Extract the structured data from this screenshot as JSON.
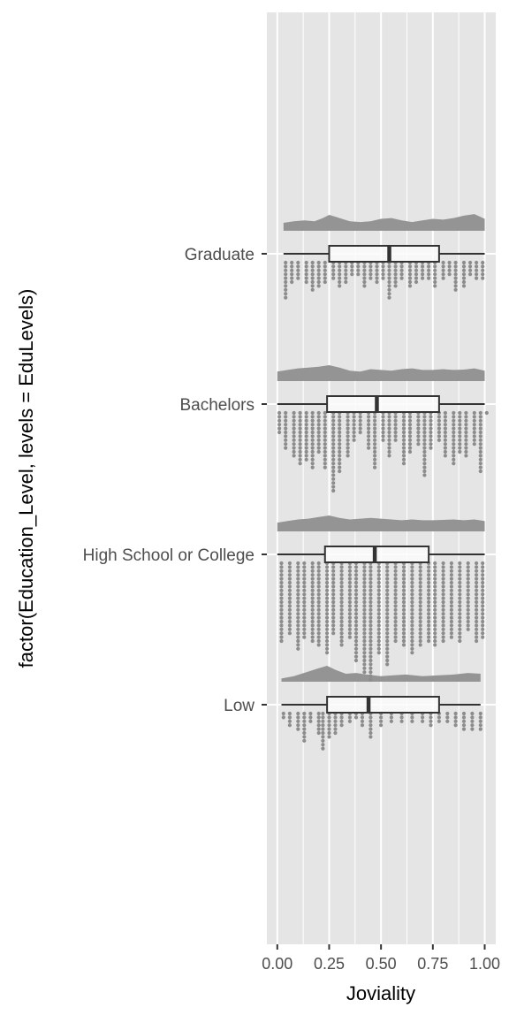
{
  "chart_data": {
    "type": "raincloud",
    "xlabel": "Joviality",
    "ylabel": "factor(Education_Level, levels = EduLevels)",
    "xlim": [
      -0.05,
      1.05
    ],
    "x_ticks": [
      "0.00",
      "0.25",
      "0.50",
      "0.75",
      "1.00"
    ],
    "x_tick_values": [
      0,
      0.25,
      0.5,
      0.75,
      1.0
    ],
    "grid": true,
    "colors": {
      "panel": "#e5e5e5",
      "grid": "#ffffff",
      "cloud": "#949494",
      "dots": "#8c8c8c",
      "box_stroke": "#333333",
      "box_fill": "#fbfbfb"
    },
    "categories": [
      "Low",
      "High School or College",
      "Bachelors",
      "Graduate"
    ],
    "series": [
      {
        "name": "Low",
        "box": {
          "min": 0.02,
          "q1": 0.24,
          "median": 0.44,
          "q3": 0.78,
          "max": 0.98
        },
        "density": [
          [
            0.02,
            0.2
          ],
          [
            0.08,
            0.35
          ],
          [
            0.14,
            0.6
          ],
          [
            0.2,
            0.85
          ],
          [
            0.24,
            1.0
          ],
          [
            0.28,
            0.75
          ],
          [
            0.33,
            0.5
          ],
          [
            0.38,
            0.55
          ],
          [
            0.43,
            0.45
          ],
          [
            0.5,
            0.35
          ],
          [
            0.56,
            0.4
          ],
          [
            0.62,
            0.45
          ],
          [
            0.7,
            0.35
          ],
          [
            0.78,
            0.4
          ],
          [
            0.85,
            0.45
          ],
          [
            0.92,
            0.55
          ],
          [
            0.98,
            0.5
          ]
        ],
        "dots": [
          [
            0.03,
            2
          ],
          [
            0.06,
            4
          ],
          [
            0.1,
            5
          ],
          [
            0.13,
            8
          ],
          [
            0.16,
            3
          ],
          [
            0.2,
            6
          ],
          [
            0.22,
            10
          ],
          [
            0.25,
            7
          ],
          [
            0.28,
            6
          ],
          [
            0.31,
            4
          ],
          [
            0.35,
            3
          ],
          [
            0.38,
            2
          ],
          [
            0.41,
            4
          ],
          [
            0.45,
            7
          ],
          [
            0.5,
            4
          ],
          [
            0.55,
            3
          ],
          [
            0.6,
            3
          ],
          [
            0.65,
            3
          ],
          [
            0.7,
            3
          ],
          [
            0.74,
            4
          ],
          [
            0.78,
            3
          ],
          [
            0.82,
            3
          ],
          [
            0.86,
            4
          ],
          [
            0.9,
            5
          ],
          [
            0.94,
            5
          ],
          [
            0.98,
            5
          ]
        ]
      },
      {
        "name": "High School or College",
        "box": {
          "min": 0.0,
          "q1": 0.23,
          "median": 0.47,
          "q3": 0.73,
          "max": 1.0
        },
        "density": [
          [
            0.0,
            0.55
          ],
          [
            0.05,
            0.65
          ],
          [
            0.1,
            0.75
          ],
          [
            0.15,
            0.8
          ],
          [
            0.2,
            0.9
          ],
          [
            0.25,
            1.0
          ],
          [
            0.3,
            0.85
          ],
          [
            0.35,
            0.75
          ],
          [
            0.4,
            0.8
          ],
          [
            0.45,
            0.85
          ],
          [
            0.5,
            0.8
          ],
          [
            0.55,
            0.75
          ],
          [
            0.6,
            0.7
          ],
          [
            0.65,
            0.75
          ],
          [
            0.7,
            0.7
          ],
          [
            0.75,
            0.7
          ],
          [
            0.8,
            0.72
          ],
          [
            0.85,
            0.75
          ],
          [
            0.9,
            0.7
          ],
          [
            0.95,
            0.75
          ],
          [
            1.0,
            0.65
          ]
        ],
        "dots": [
          [
            0.02,
            21
          ],
          [
            0.06,
            19
          ],
          [
            0.1,
            23
          ],
          [
            0.13,
            20
          ],
          [
            0.17,
            21
          ],
          [
            0.2,
            22
          ],
          [
            0.24,
            24
          ],
          [
            0.27,
            19
          ],
          [
            0.31,
            22
          ],
          [
            0.35,
            20
          ],
          [
            0.38,
            26
          ],
          [
            0.42,
            29
          ],
          [
            0.45,
            31
          ],
          [
            0.49,
            24
          ],
          [
            0.53,
            27
          ],
          [
            0.57,
            21
          ],
          [
            0.61,
            22
          ],
          [
            0.65,
            24
          ],
          [
            0.69,
            22
          ],
          [
            0.73,
            21
          ],
          [
            0.76,
            22
          ],
          [
            0.8,
            21
          ],
          [
            0.84,
            20
          ],
          [
            0.88,
            21
          ],
          [
            0.92,
            18
          ],
          [
            0.96,
            21
          ],
          [
            0.99,
            20
          ]
        ]
      },
      {
        "name": "Bachelors",
        "box": {
          "min": 0.0,
          "q1": 0.24,
          "median": 0.48,
          "q3": 0.78,
          "max": 1.0
        },
        "density": [
          [
            0.0,
            0.6
          ],
          [
            0.05,
            0.7
          ],
          [
            0.1,
            0.8
          ],
          [
            0.15,
            0.85
          ],
          [
            0.2,
            0.9
          ],
          [
            0.25,
            1.0
          ],
          [
            0.3,
            0.85
          ],
          [
            0.35,
            0.65
          ],
          [
            0.4,
            0.6
          ],
          [
            0.45,
            0.75
          ],
          [
            0.5,
            0.7
          ],
          [
            0.55,
            0.65
          ],
          [
            0.6,
            0.75
          ],
          [
            0.65,
            0.8
          ],
          [
            0.7,
            0.7
          ],
          [
            0.75,
            0.7
          ],
          [
            0.8,
            0.75
          ],
          [
            0.85,
            0.7
          ],
          [
            0.9,
            0.72
          ],
          [
            0.95,
            0.8
          ],
          [
            1.0,
            0.65
          ]
        ],
        "dots": [
          [
            0.01,
            6
          ],
          [
            0.04,
            10
          ],
          [
            0.08,
            12
          ],
          [
            0.11,
            14
          ],
          [
            0.14,
            13
          ],
          [
            0.17,
            15
          ],
          [
            0.2,
            11
          ],
          [
            0.23,
            15
          ],
          [
            0.27,
            21
          ],
          [
            0.3,
            16
          ],
          [
            0.34,
            12
          ],
          [
            0.37,
            8
          ],
          [
            0.4,
            6
          ],
          [
            0.44,
            10
          ],
          [
            0.47,
            15
          ],
          [
            0.51,
            8
          ],
          [
            0.54,
            12
          ],
          [
            0.57,
            8
          ],
          [
            0.61,
            14
          ],
          [
            0.64,
            11
          ],
          [
            0.68,
            9
          ],
          [
            0.71,
            17
          ],
          [
            0.74,
            10
          ],
          [
            0.78,
            8
          ],
          [
            0.81,
            12
          ],
          [
            0.85,
            14
          ],
          [
            0.88,
            11
          ],
          [
            0.91,
            12
          ],
          [
            0.95,
            9
          ],
          [
            0.98,
            16
          ],
          [
            1.01,
            1
          ]
        ]
      },
      {
        "name": "Graduate",
        "box": {
          "min": 0.03,
          "q1": 0.25,
          "median": 0.54,
          "q3": 0.78,
          "max": 1.0
        },
        "density": [
          [
            0.03,
            0.5
          ],
          [
            0.08,
            0.6
          ],
          [
            0.13,
            0.65
          ],
          [
            0.18,
            0.6
          ],
          [
            0.22,
            0.8
          ],
          [
            0.25,
            1.0
          ],
          [
            0.3,
            0.8
          ],
          [
            0.35,
            0.6
          ],
          [
            0.4,
            0.55
          ],
          [
            0.45,
            0.6
          ],
          [
            0.5,
            0.75
          ],
          [
            0.55,
            0.8
          ],
          [
            0.6,
            0.65
          ],
          [
            0.65,
            0.55
          ],
          [
            0.7,
            0.65
          ],
          [
            0.75,
            0.75
          ],
          [
            0.8,
            0.7
          ],
          [
            0.85,
            0.8
          ],
          [
            0.9,
            0.95
          ],
          [
            0.95,
            1.05
          ],
          [
            1.0,
            0.75
          ]
        ],
        "dots": [
          [
            0.04,
            10
          ],
          [
            0.07,
            6
          ],
          [
            0.1,
            5
          ],
          [
            0.14,
            6
          ],
          [
            0.17,
            8
          ],
          [
            0.2,
            7
          ],
          [
            0.23,
            6
          ],
          [
            0.27,
            5
          ],
          [
            0.3,
            7
          ],
          [
            0.33,
            6
          ],
          [
            0.36,
            4
          ],
          [
            0.39,
            4
          ],
          [
            0.42,
            7
          ],
          [
            0.45,
            5
          ],
          [
            0.48,
            6
          ],
          [
            0.51,
            5
          ],
          [
            0.54,
            10
          ],
          [
            0.57,
            7
          ],
          [
            0.6,
            5
          ],
          [
            0.64,
            7
          ],
          [
            0.67,
            6
          ],
          [
            0.7,
            5
          ],
          [
            0.73,
            5
          ],
          [
            0.76,
            7
          ],
          [
            0.8,
            5
          ],
          [
            0.83,
            4
          ],
          [
            0.86,
            8
          ],
          [
            0.9,
            7
          ],
          [
            0.93,
            4
          ],
          [
            0.96,
            5
          ],
          [
            0.99,
            5
          ]
        ]
      }
    ]
  }
}
